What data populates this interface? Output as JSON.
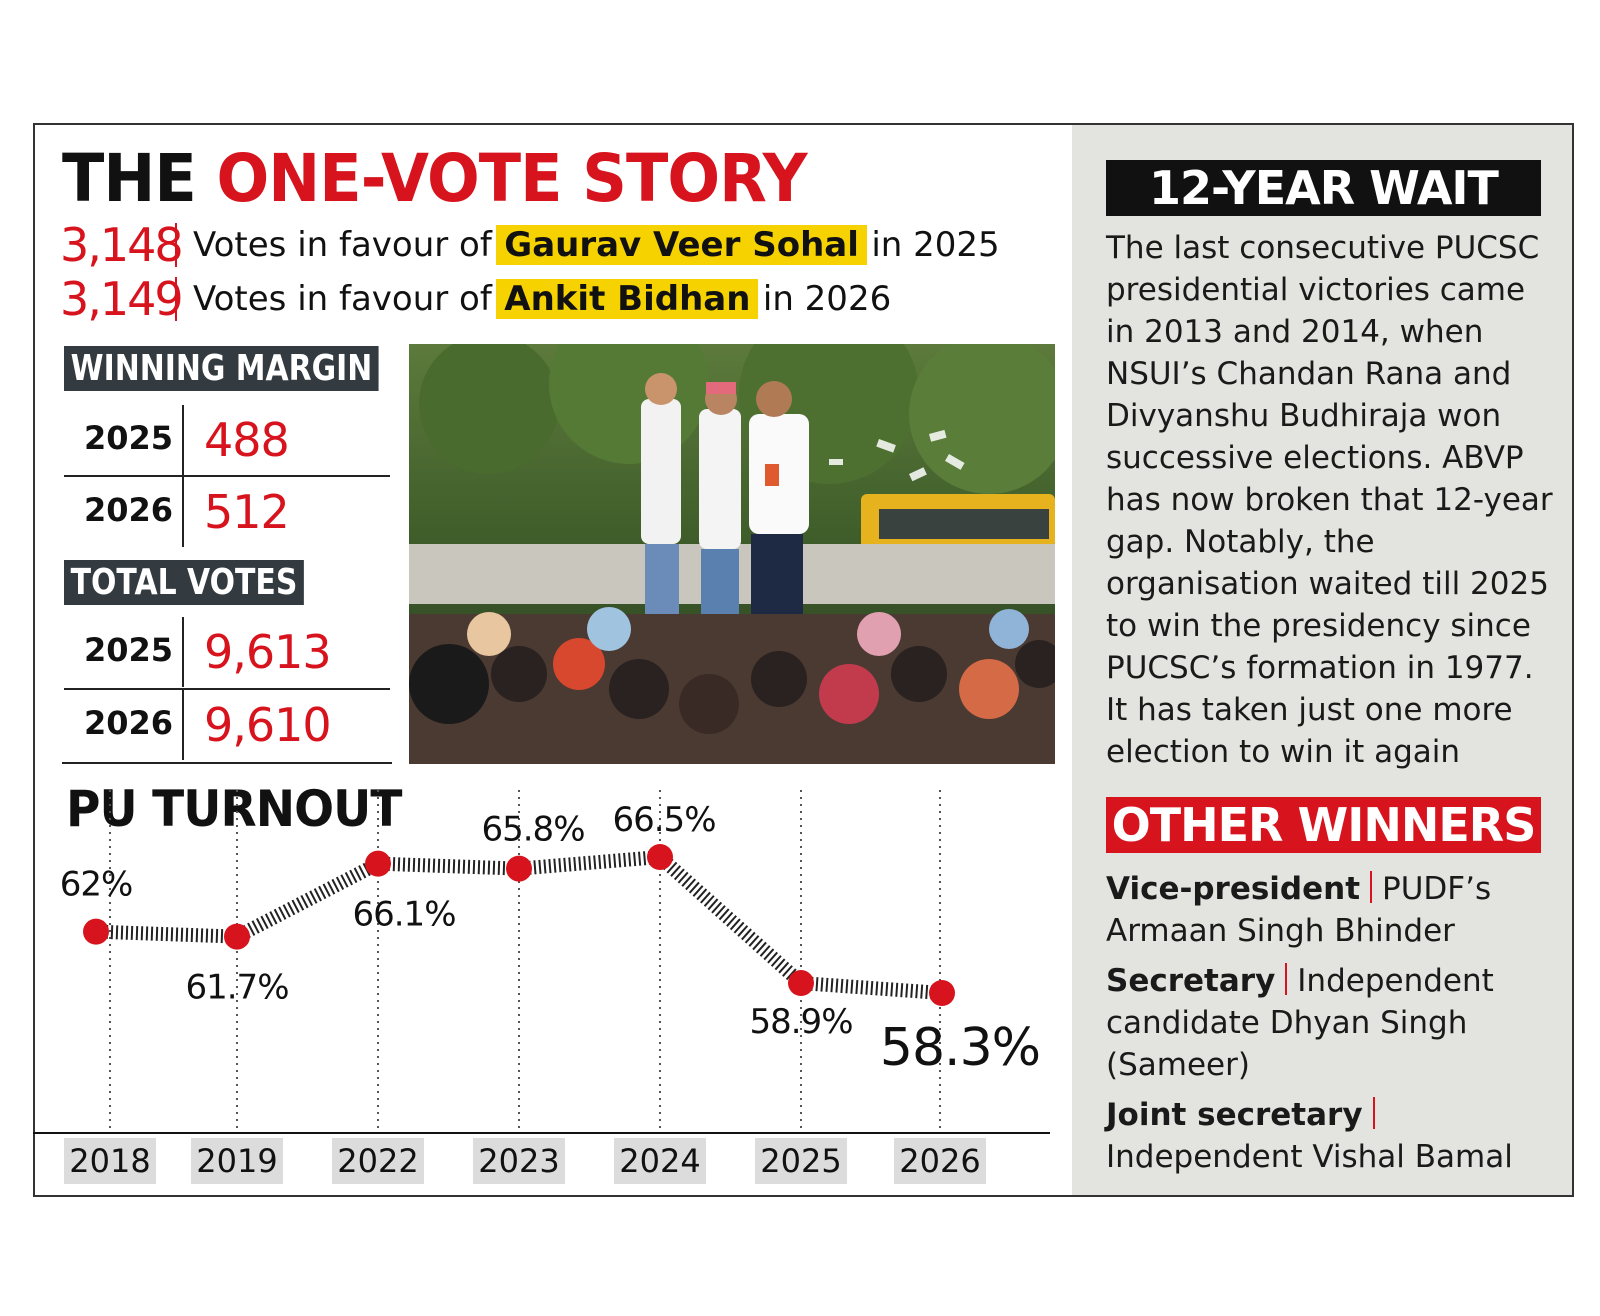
{
  "headline": {
    "part1": "THE",
    "part2": "ONE-VOTE STORY"
  },
  "votes": [
    {
      "number": "3,148",
      "prefix": "Votes in favour of",
      "name": "Gaurav Veer Sohal",
      "suffix": "in 2025"
    },
    {
      "number": "3,149",
      "prefix": "Votes in favour of",
      "name": "Ankit Bidhan",
      "suffix": "in 2026"
    }
  ],
  "winning_margin": {
    "label": "WINNING MARGIN",
    "rows": [
      {
        "year": "2025",
        "value": "488"
      },
      {
        "year": "2026",
        "value": "512"
      }
    ]
  },
  "total_votes": {
    "label": "TOTAL VOTES",
    "rows": [
      {
        "year": "2025",
        "value": "9,613"
      },
      {
        "year": "2026",
        "value": "9,610"
      }
    ]
  },
  "photo": {
    "icon": "celebration-crowd-photo"
  },
  "chart_data": {
    "type": "line",
    "title": "PU TURNOUT",
    "categories": [
      "2018",
      "2019",
      "2022",
      "2023",
      "2024",
      "2025",
      "2026"
    ],
    "values": [
      62,
      61.7,
      66.1,
      65.8,
      66.5,
      58.9,
      58.3
    ],
    "data_labels": [
      "62%",
      "61.7%",
      "66.1%",
      "65.8%",
      "66.5%",
      "58.9%",
      "58.3%"
    ],
    "xlabel": "",
    "ylabel": "",
    "grid": false,
    "legend": "none",
    "colors": {
      "point": "#d7141d",
      "line": "#222222",
      "tick_bg": "#dcdcdc"
    }
  },
  "sidebar": {
    "wait_title": "12-YEAR WAIT",
    "wait_text": "The last consecutive PUCSC presidential victories came in 2013 and 2014, when NSUI’s Chandan Rana and Divyanshu Budhiraja won successive elections. ABVP has now broken that 12-year gap. Notably, the organisation waited till 2025 to win the presidency since PUCSC’s formation in 1977. It has taken just one more election to win it again",
    "winners_title": "OTHER WINNERS",
    "winners": [
      {
        "role": "Vice-president",
        "detail": "PUDF’s Armaan Singh Bhinder"
      },
      {
        "role": "Secretary",
        "detail": "Independent candidate Dhyan Singh (Sameer)"
      },
      {
        "role": "Joint secretary",
        "detail": "Independent Vishal Bamal"
      }
    ]
  },
  "colors": {
    "accent_red": "#d7141d",
    "highlight_yellow": "#f5d200",
    "label_dark": "#333b40",
    "sidebar_bg": "#e3e3df"
  }
}
